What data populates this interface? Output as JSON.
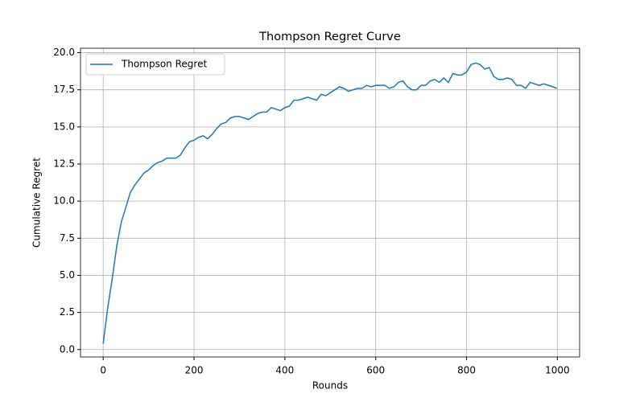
{
  "chart_data": {
    "type": "line",
    "title": "Thompson Regret Curve",
    "xlabel": "Rounds",
    "ylabel": "Cumulative Regret",
    "x": [
      0,
      10,
      20,
      30,
      40,
      50,
      60,
      70,
      80,
      90,
      100,
      110,
      120,
      130,
      140,
      150,
      160,
      170,
      180,
      190,
      200,
      210,
      220,
      230,
      240,
      250,
      260,
      270,
      280,
      290,
      300,
      310,
      320,
      330,
      340,
      350,
      360,
      370,
      380,
      390,
      400,
      410,
      420,
      430,
      440,
      450,
      460,
      470,
      480,
      490,
      500,
      510,
      520,
      530,
      540,
      550,
      560,
      570,
      580,
      590,
      600,
      610,
      620,
      630,
      640,
      650,
      660,
      670,
      680,
      690,
      700,
      710,
      720,
      730,
      740,
      750,
      760,
      770,
      780,
      790,
      800,
      810,
      820,
      830,
      840,
      850,
      860,
      870,
      880,
      890,
      900,
      910,
      920,
      930,
      940,
      950,
      960,
      970,
      980,
      990,
      999
    ],
    "series": [
      {
        "name": "Thompson Regret",
        "color": "#1f77b4",
        "values": [
          0.4,
          2.8,
          4.8,
          7.0,
          8.6,
          9.6,
          10.6,
          11.1,
          11.5,
          11.9,
          12.1,
          12.4,
          12.6,
          12.7,
          12.9,
          12.9,
          12.9,
          13.1,
          13.6,
          14.0,
          14.1,
          14.3,
          14.4,
          14.2,
          14.5,
          14.9,
          15.2,
          15.3,
          15.6,
          15.7,
          15.7,
          15.6,
          15.5,
          15.7,
          15.9,
          16.0,
          16.0,
          16.3,
          16.2,
          16.1,
          16.3,
          16.4,
          16.8,
          16.8,
          16.9,
          17.0,
          16.9,
          16.8,
          17.2,
          17.1,
          17.3,
          17.5,
          17.7,
          17.6,
          17.4,
          17.5,
          17.6,
          17.6,
          17.8,
          17.7,
          17.8,
          17.8,
          17.8,
          17.6,
          17.7,
          18.0,
          18.1,
          17.7,
          17.5,
          17.5,
          17.8,
          17.8,
          18.1,
          18.2,
          18.0,
          18.3,
          18.0,
          18.6,
          18.5,
          18.5,
          18.7,
          19.2,
          19.3,
          19.2,
          18.9,
          19.0,
          18.4,
          18.2,
          18.2,
          18.3,
          18.2,
          17.8,
          17.8,
          17.6,
          18.0,
          17.9,
          17.8,
          17.9,
          17.8,
          17.7,
          17.6
        ]
      }
    ],
    "xlim": [
      -49.95,
      1048.95
    ],
    "ylim": [
      -0.5,
      20.3
    ],
    "xticks": [
      0,
      200,
      400,
      600,
      800,
      1000
    ],
    "yticks": [
      {
        "value": 0,
        "label": "0.0"
      },
      {
        "value": 2.5,
        "label": "2.5"
      },
      {
        "value": 5,
        "label": "5.0"
      },
      {
        "value": 7.5,
        "label": "7.5"
      },
      {
        "value": 10,
        "label": "10.0"
      },
      {
        "value": 12.5,
        "label": "12.5"
      },
      {
        "value": 15,
        "label": "15.0"
      },
      {
        "value": 17.5,
        "label": "17.5"
      },
      {
        "value": 20,
        "label": "20.0"
      }
    ],
    "grid": true,
    "legend": "upper-left"
  }
}
